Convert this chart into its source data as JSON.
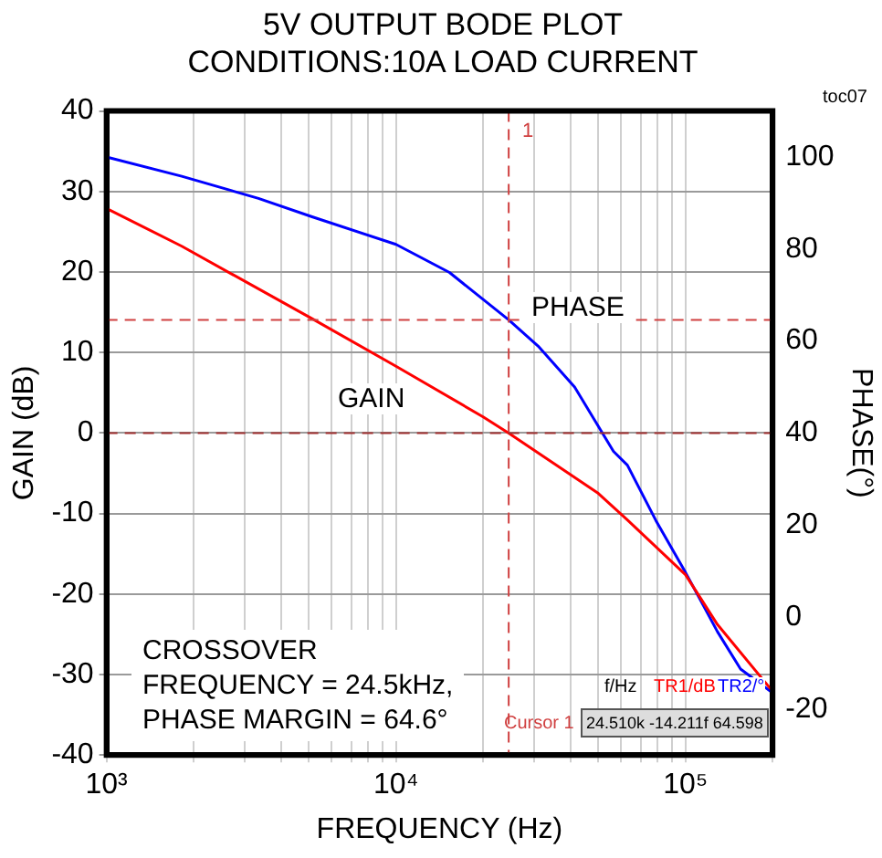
{
  "chart_data": {
    "type": "line",
    "title": "5V OUTPUT BODE PLOT",
    "subtitle": "CONDITIONS:10A LOAD CURRENT",
    "xlabel": "FREQUENCY (Hz)",
    "ylabel": "GAIN (dB)",
    "y2label": "PHASE(°)",
    "log": "x",
    "grid": true,
    "legend": false,
    "marker": "none",
    "line_style": "solid",
    "xlim": [
      1000,
      200000
    ],
    "xticks": [
      {
        "value": 1000,
        "label": "10³"
      },
      {
        "value": 2000,
        "label": null
      },
      {
        "value": 3000,
        "label": null
      },
      {
        "value": 4000,
        "label": null
      },
      {
        "value": 5000,
        "label": null
      },
      {
        "value": 6000,
        "label": null
      },
      {
        "value": 7000,
        "label": null
      },
      {
        "value": 8000,
        "label": null
      },
      {
        "value": 9000,
        "label": null
      },
      {
        "value": 10000,
        "label": "10⁴"
      },
      {
        "value": 20000,
        "label": null
      },
      {
        "value": 30000,
        "label": null
      },
      {
        "value": 40000,
        "label": null
      },
      {
        "value": 50000,
        "label": null
      },
      {
        "value": 60000,
        "label": null
      },
      {
        "value": 70000,
        "label": null
      },
      {
        "value": 80000,
        "label": null
      },
      {
        "value": 90000,
        "label": null
      },
      {
        "value": 100000,
        "label": "10⁵"
      },
      {
        "value": 200000,
        "label": null
      }
    ],
    "ylim": [
      -40,
      40
    ],
    "yticks": [
      -40,
      -30,
      -20,
      -10,
      0,
      10,
      20,
      30,
      40
    ],
    "y2lim": [
      -30,
      110
    ],
    "y2ticks": [
      -20,
      0,
      20,
      40,
      60,
      80,
      100
    ],
    "series": [
      {
        "color": "#ff0000",
        "x": [
          1000,
          1820,
          5130,
          10000,
          20000,
          24500,
          50000,
          63000,
          100000,
          129000,
          197000
        ],
        "values": [
          27.9,
          23.2,
          14.2,
          8.3,
          2.0,
          0,
          -7.5,
          -10.8,
          -17.6,
          -23.8,
          -31.8
        ]
      },
      {
        "color": "#0000ff",
        "axis": "y2",
        "x": [
          1000,
          1820,
          3350,
          5130,
          10000,
          15300,
          24500,
          31200,
          41400,
          56400,
          63000,
          79000,
          100000,
          129000,
          155000,
          197000
        ],
        "values": [
          100,
          95.8,
          91,
          87,
          81,
          74.9,
          64.6,
          58.7,
          50,
          36,
          33,
          21,
          9.7,
          -3.2,
          -11.3,
          -16.2
        ]
      }
    ],
    "ref_lines": [
      {
        "axis": "x",
        "value": 24510,
        "color": "#d04040",
        "line_style": "dashed"
      },
      {
        "axis": "y2",
        "value": 64.6,
        "color": "#d04040",
        "line_style": "dashed"
      },
      {
        "axis": "y",
        "value": 0,
        "color": "#a03030",
        "line_style": "dashed"
      }
    ],
    "annotations": [
      "toc07",
      "CROSSOVER\nFREQUENCY = 24.5kHz,\nPHASE MARGIN = 64.6°",
      "f/Hz",
      "TR1/dB",
      "TR2/°",
      "Cursor 1",
      "24.510k  -14.211f  64.598",
      "GAIN",
      "PHASE",
      "1"
    ]
  }
}
